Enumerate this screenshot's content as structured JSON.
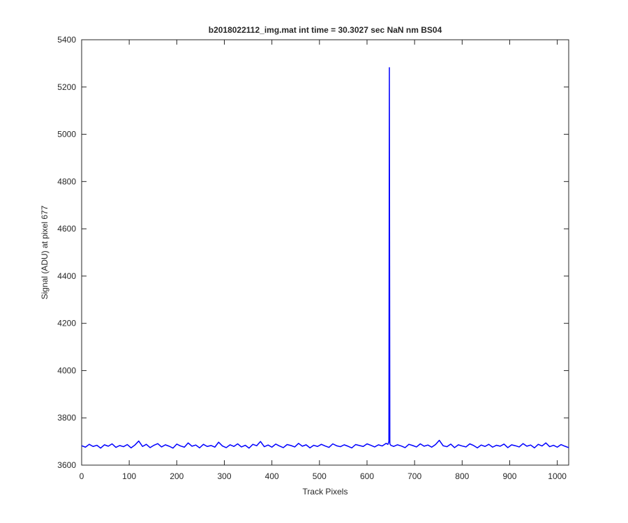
{
  "chart_data": {
    "type": "line",
    "title": "b2018022112_img.mat int time = 30.3027 sec  NaN nm BS04",
    "x_label": "Track Pixels",
    "y_label": "Signal (ADU) at pixel 677",
    "x": [
      0,
      8,
      16,
      24,
      32,
      40,
      48,
      56,
      64,
      72,
      80,
      88,
      96,
      104,
      112,
      120,
      128,
      136,
      144,
      152,
      160,
      168,
      176,
      184,
      192,
      200,
      208,
      216,
      224,
      232,
      240,
      248,
      256,
      264,
      272,
      280,
      288,
      296,
      304,
      312,
      320,
      328,
      336,
      344,
      352,
      360,
      368,
      376,
      384,
      392,
      400,
      408,
      416,
      424,
      432,
      440,
      448,
      456,
      464,
      472,
      480,
      488,
      496,
      504,
      512,
      520,
      528,
      536,
      544,
      552,
      560,
      568,
      576,
      584,
      592,
      600,
      608,
      616,
      624,
      632,
      640,
      644,
      646,
      647,
      648,
      650,
      656,
      664,
      672,
      680,
      688,
      696,
      704,
      712,
      720,
      728,
      736,
      744,
      752,
      760,
      768,
      776,
      784,
      792,
      800,
      808,
      816,
      824,
      832,
      840,
      848,
      856,
      864,
      872,
      880,
      888,
      896,
      904,
      912,
      920,
      928,
      936,
      944,
      952,
      960,
      968,
      976,
      984,
      992,
      1000,
      1008,
      1016,
      1024
    ],
    "series": [
      {
        "name": "signal",
        "color": "#0000ff",
        "values": [
          3682,
          3676,
          3688,
          3679,
          3684,
          3672,
          3686,
          3680,
          3690,
          3675,
          3683,
          3678,
          3687,
          3673,
          3685,
          3702,
          3679,
          3688,
          3674,
          3684,
          3691,
          3677,
          3686,
          3680,
          3672,
          3689,
          3681,
          3676,
          3694,
          3680,
          3685,
          3673,
          3688,
          3679,
          3683,
          3676,
          3697,
          3681,
          3674,
          3686,
          3679,
          3690,
          3677,
          3684,
          3672,
          3688,
          3682,
          3700,
          3678,
          3685,
          3676,
          3689,
          3681,
          3674,
          3687,
          3683,
          3677,
          3692,
          3680,
          3686,
          3673,
          3684,
          3679,
          3688,
          3681,
          3675,
          3690,
          3682,
          3678,
          3686,
          3680,
          3673,
          3687,
          3683,
          3679,
          3690,
          3684,
          3677,
          3686,
          3681,
          3692,
          3688,
          3700,
          5282,
          3690,
          3684,
          3679,
          3686,
          3681,
          3674,
          3688,
          3683,
          3677,
          3690,
          3680,
          3685,
          3676,
          3687,
          3705,
          3682,
          3678,
          3689,
          3674,
          3686,
          3681,
          3677,
          3690,
          3683,
          3673,
          3685,
          3679,
          3688,
          3676,
          3684,
          3680,
          3689,
          3674,
          3686,
          3682,
          3677,
          3691,
          3680,
          3685,
          3673,
          3688,
          3681,
          3694,
          3678,
          3684,
          3676,
          3687,
          3680,
          3674
        ]
      }
    ],
    "xlim": [
      0,
      1024
    ],
    "ylim": [
      3600,
      5400
    ],
    "xticks": [
      0,
      100,
      200,
      300,
      400,
      500,
      600,
      700,
      800,
      900,
      1000
    ],
    "yticks": [
      3600,
      3800,
      4000,
      4200,
      4400,
      4600,
      4800,
      5000,
      5200,
      5400
    ]
  }
}
